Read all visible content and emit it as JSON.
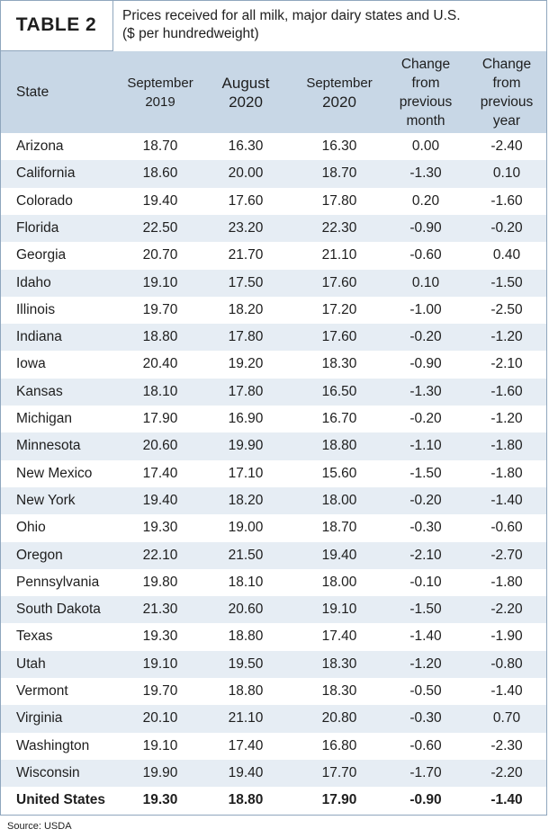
{
  "header": {
    "label": "TABLE 2",
    "title": [
      "Prices received for all milk, major dairy states and U.S.",
      "($ per hundredweight)"
    ]
  },
  "table": {
    "columns": [
      [
        "State"
      ],
      [
        "September",
        "2019"
      ],
      [
        "August",
        "2020"
      ],
      [
        "September",
        "2020"
      ],
      [
        "Change",
        "from",
        "previous",
        "month"
      ],
      [
        "Change",
        "from",
        "previous",
        "year"
      ]
    ],
    "rows": [
      [
        "Arizona",
        "18.70",
        "16.30",
        "16.30",
        "0.00",
        "-2.40"
      ],
      [
        "California",
        "18.60",
        "20.00",
        "18.70",
        "-1.30",
        "0.10"
      ],
      [
        "Colorado",
        "19.40",
        "17.60",
        "17.80",
        "0.20",
        "-1.60"
      ],
      [
        "Florida",
        "22.50",
        "23.20",
        "22.30",
        "-0.90",
        "-0.20"
      ],
      [
        "Georgia",
        "20.70",
        "21.70",
        "21.10",
        "-0.60",
        "0.40"
      ],
      [
        "Idaho",
        "19.10",
        "17.50",
        "17.60",
        "0.10",
        "-1.50"
      ],
      [
        "Illinois",
        "19.70",
        "18.20",
        "17.20",
        "-1.00",
        "-2.50"
      ],
      [
        "Indiana",
        "18.80",
        "17.80",
        "17.60",
        "-0.20",
        "-1.20"
      ],
      [
        "Iowa",
        "20.40",
        "19.20",
        "18.30",
        "-0.90",
        "-2.10"
      ],
      [
        "Kansas",
        "18.10",
        "17.80",
        "16.50",
        "-1.30",
        "-1.60"
      ],
      [
        "Michigan",
        "17.90",
        "16.90",
        "16.70",
        "-0.20",
        "-1.20"
      ],
      [
        "Minnesota",
        "20.60",
        "19.90",
        "18.80",
        "-1.10",
        "-1.80"
      ],
      [
        "New Mexico",
        "17.40",
        "17.10",
        "15.60",
        "-1.50",
        "-1.80"
      ],
      [
        "New York",
        "19.40",
        "18.20",
        "18.00",
        "-0.20",
        "-1.40"
      ],
      [
        "Ohio",
        "19.30",
        "19.00",
        "18.70",
        "-0.30",
        "-0.60"
      ],
      [
        "Oregon",
        "22.10",
        "21.50",
        "19.40",
        "-2.10",
        "-2.70"
      ],
      [
        "Pennsylvania",
        "19.80",
        "18.10",
        "18.00",
        "-0.10",
        "-1.80"
      ],
      [
        "South Dakota",
        "21.30",
        "20.60",
        "19.10",
        "-1.50",
        "-2.20"
      ],
      [
        "Texas",
        "19.30",
        "18.80",
        "17.40",
        "-1.40",
        "-1.90"
      ],
      [
        "Utah",
        "19.10",
        "19.50",
        "18.30",
        "-1.20",
        "-0.80"
      ],
      [
        "Vermont",
        "19.70",
        "18.80",
        "18.30",
        "-0.50",
        "-1.40"
      ],
      [
        "Virginia",
        "20.10",
        "21.10",
        "20.80",
        "-0.30",
        "0.70"
      ],
      [
        "Washington",
        "19.10",
        "17.40",
        "16.80",
        "-0.60",
        "-2.30"
      ],
      [
        "Wisconsin",
        "19.90",
        "19.40",
        "17.70",
        "-1.70",
        "-2.20"
      ],
      [
        "United States",
        "19.30",
        "18.80",
        "17.90",
        "-0.90",
        "-1.40"
      ]
    ]
  },
  "source": "Source: USDA"
}
